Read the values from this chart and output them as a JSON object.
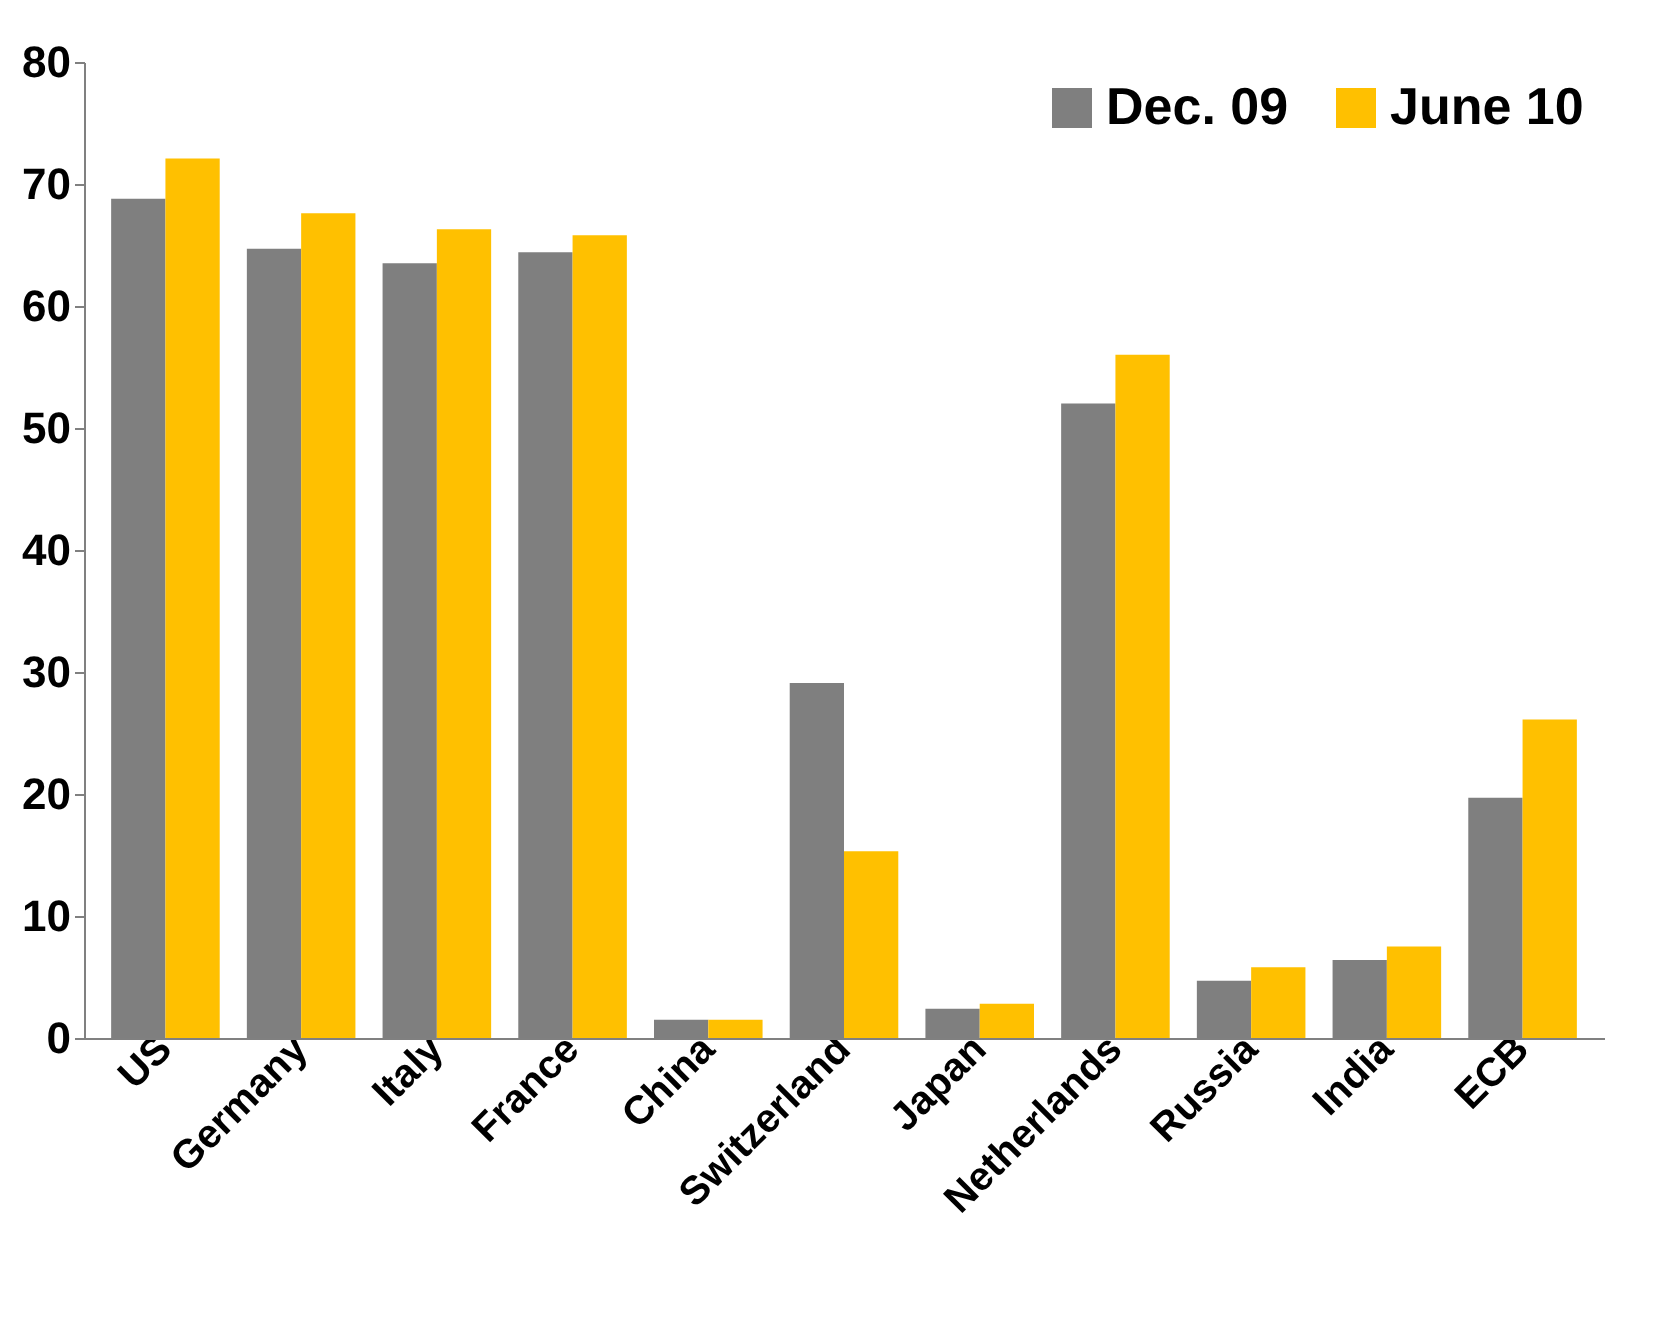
{
  "chart_data": {
    "type": "bar",
    "categories": [
      "US",
      "Germany",
      "Italy",
      "France",
      "China",
      "Switzerland",
      "Japan",
      "Netherlands",
      "Russia",
      "India",
      "ECB"
    ],
    "series": [
      {
        "name": "Dec. 09",
        "color": "#7f7f7f",
        "values": [
          68.8,
          64.7,
          63.5,
          64.4,
          1.5,
          29.1,
          2.4,
          52,
          4.7,
          6.4,
          19.7
        ]
      },
      {
        "name": "June 10",
        "color": "#ffc000",
        "values": [
          72.1,
          67.6,
          66.3,
          65.8,
          1.5,
          15.3,
          2.8,
          56,
          5.8,
          7.5,
          26.1
        ]
      }
    ],
    "ylim": [
      0,
      80
    ],
    "yticks": [
      0,
      10,
      20,
      30,
      40,
      50,
      60,
      70,
      80
    ],
    "grid": false,
    "legend": "top right"
  }
}
